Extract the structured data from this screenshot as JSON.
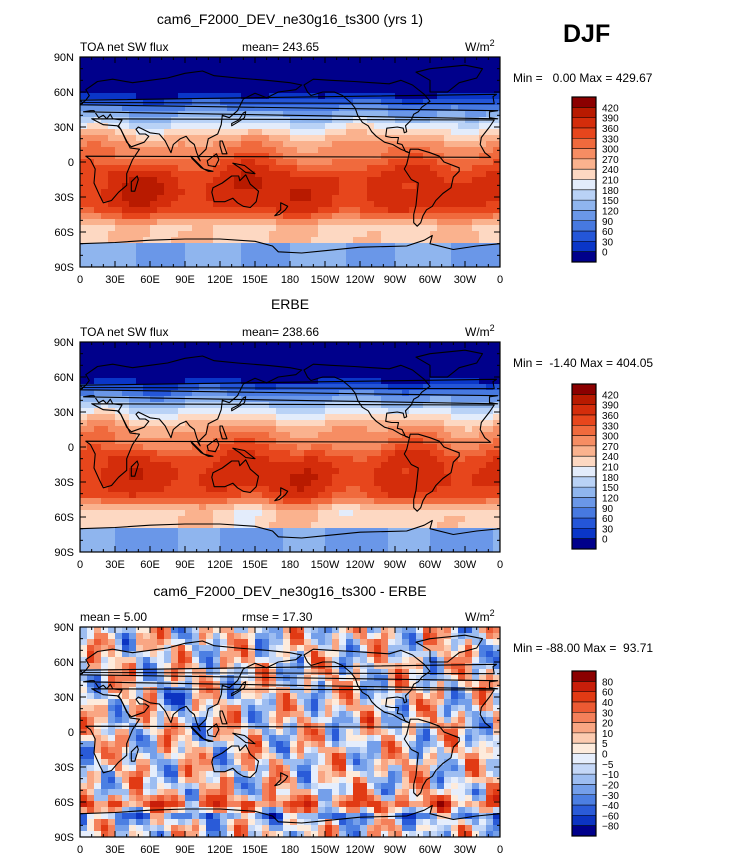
{
  "season_label": "DJF",
  "panels": [
    {
      "title": "cam6_F2000_DEV_ne30g16_ts300 (yrs 1)",
      "left_label": "TOA net SW flux",
      "mid_label": "mean= 243.65",
      "units": "W/m",
      "units_sup": "2",
      "minmax": "Min =   0.00 Max = 429.67",
      "colorbar_labels": [
        "420",
        "390",
        "360",
        "330",
        "300",
        "270",
        "240",
        "210",
        "180",
        "150",
        "120",
        "90",
        "60",
        "30",
        "0"
      ],
      "colorbar_colors": [
        "#8b0000",
        "#b81a00",
        "#d42d0b",
        "#e7461c",
        "#f06a3d",
        "#f68d63",
        "#fab28e",
        "#fdd8c2",
        "#e3ecfb",
        "#b9d2f6",
        "#8fb5ee",
        "#6a97e8",
        "#4779e0",
        "#2456d8",
        "#0a36c8",
        "#00008b"
      ]
    },
    {
      "title": "ERBE",
      "left_label": "TOA net SW flux",
      "mid_label": "mean= 238.66",
      "units": "W/m",
      "units_sup": "2",
      "minmax": "Min =  -1.40 Max = 404.05",
      "colorbar_labels": [
        "420",
        "390",
        "360",
        "330",
        "300",
        "270",
        "240",
        "210",
        "180",
        "150",
        "120",
        "90",
        "60",
        "30",
        "0"
      ],
      "colorbar_colors": [
        "#8b0000",
        "#b81a00",
        "#d42d0b",
        "#e7461c",
        "#f06a3d",
        "#f68d63",
        "#fab28e",
        "#fdd8c2",
        "#e3ecfb",
        "#b9d2f6",
        "#8fb5ee",
        "#6a97e8",
        "#4779e0",
        "#2456d8",
        "#0a36c8",
        "#00008b"
      ]
    },
    {
      "title": "cam6_F2000_DEV_ne30g16_ts300 - ERBE",
      "left_label": "mean =    5.00",
      "mid_label": "rmse =   17.30",
      "units": "W/m",
      "units_sup": "2",
      "minmax": "Min = -88.00 Max =  93.71",
      "colorbar_labels": [
        "80",
        "60",
        "40",
        "30",
        "20",
        "10",
        "5",
        "0",
        "−5",
        "−10",
        "−20",
        "−30",
        "−40",
        "−60",
        "−80"
      ],
      "colorbar_colors": [
        "#8b0000",
        "#c81e0a",
        "#e13a14",
        "#ec5a33",
        "#f4805a",
        "#f9a683",
        "#fccbb0",
        "#fdebdc",
        "#e6eefc",
        "#c4d7f7",
        "#9dbdf1",
        "#749fea",
        "#4c7fe2",
        "#2a5bd8",
        "#0c34c2",
        "#00008b"
      ]
    }
  ],
  "axes": {
    "lat_ticks": [
      "90N",
      "60N",
      "30N",
      "0",
      "30S",
      "60S",
      "90S"
    ],
    "lat_values": [
      90,
      60,
      30,
      0,
      -30,
      -60,
      -90
    ],
    "lon_ticks": [
      "0",
      "30E",
      "60E",
      "90E",
      "120E",
      "150E",
      "180",
      "150W",
      "120W",
      "90W",
      "60W",
      "30W",
      "0"
    ],
    "lon_values": [
      0,
      30,
      60,
      90,
      120,
      150,
      180,
      210,
      240,
      270,
      300,
      330,
      360
    ]
  },
  "chart_data": [
    {
      "type": "heatmap",
      "title": "cam6_F2000_DEV_ne30g16_ts300 (yrs 1)",
      "variable": "TOA net SW flux",
      "units": "W/m2",
      "mean": 243.65,
      "min": 0.0,
      "max": 429.67,
      "xlim": [
        0,
        360
      ],
      "ylim": [
        -90,
        90
      ],
      "levels": [
        0,
        30,
        60,
        90,
        120,
        150,
        180,
        210,
        240,
        270,
        300,
        330,
        360,
        390,
        420
      ]
    },
    {
      "type": "heatmap",
      "title": "ERBE",
      "variable": "TOA net SW flux",
      "units": "W/m2",
      "mean": 238.66,
      "min": -1.4,
      "max": 404.05,
      "xlim": [
        0,
        360
      ],
      "ylim": [
        -90,
        90
      ],
      "levels": [
        0,
        30,
        60,
        90,
        120,
        150,
        180,
        210,
        240,
        270,
        300,
        330,
        360,
        390,
        420
      ]
    },
    {
      "type": "heatmap",
      "title": "cam6_F2000_DEV_ne30g16_ts300 - ERBE",
      "units": "W/m2",
      "mean": 5.0,
      "rmse": 17.3,
      "min": -88.0,
      "max": 93.71,
      "xlim": [
        0,
        360
      ],
      "ylim": [
        -90,
        90
      ],
      "levels": [
        -80,
        -60,
        -40,
        -30,
        -20,
        -10,
        -5,
        0,
        5,
        10,
        20,
        30,
        40,
        60,
        80
      ]
    }
  ]
}
